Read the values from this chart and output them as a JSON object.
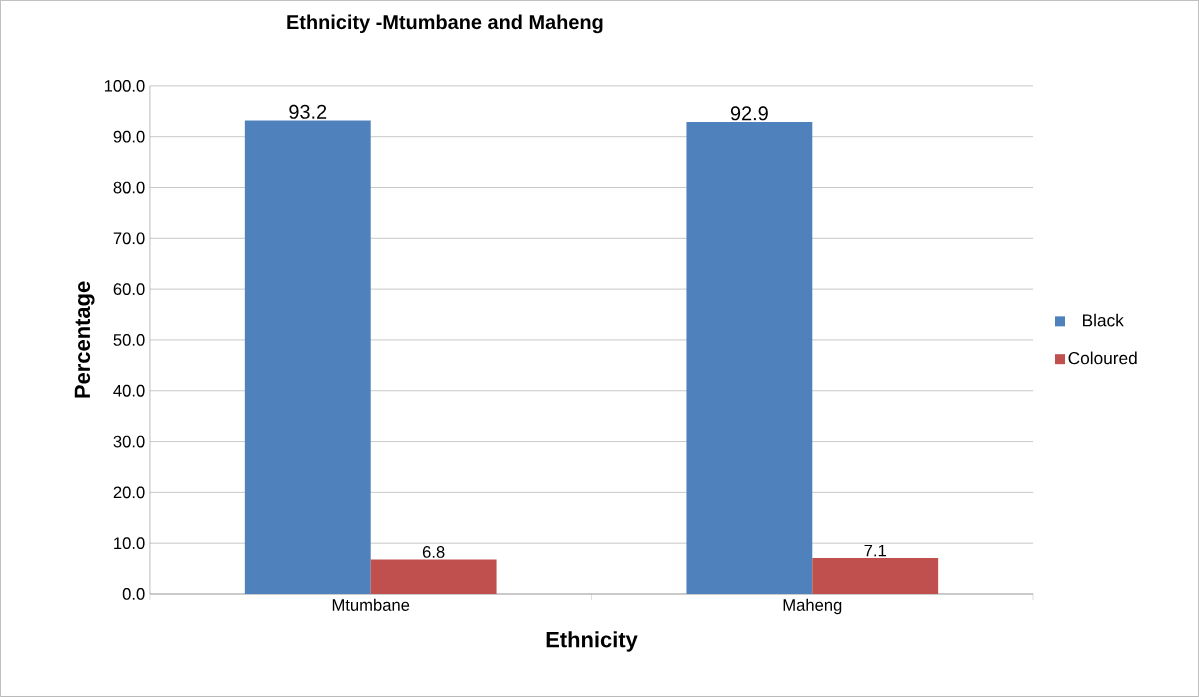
{
  "chart_data": {
    "type": "bar",
    "title": "Ethnicity -Mtumbane and Maheng",
    "xlabel": "Ethnicity",
    "ylabel": "Percentage",
    "categories": [
      "Mtumbane",
      "Maheng"
    ],
    "series": [
      {
        "name": "Black",
        "color": "#4f81bd",
        "values": [
          93.2,
          92.9
        ],
        "value_labels": [
          "93.2",
          "92.9"
        ]
      },
      {
        "name": "Coloured",
        "color": "#c0504d",
        "values": [
          6.8,
          7.1
        ],
        "value_labels": [
          "6.8",
          "7.1"
        ]
      }
    ],
    "ylim": [
      0,
      100
    ],
    "yticks": [
      {
        "value": 0,
        "label": "0.0"
      },
      {
        "value": 10,
        "label": "10.0"
      },
      {
        "value": 20,
        "label": "20.0"
      },
      {
        "value": 30,
        "label": "30.0"
      },
      {
        "value": 40,
        "label": "40.0"
      },
      {
        "value": 50,
        "label": "50.0"
      },
      {
        "value": 60,
        "label": "60.0"
      },
      {
        "value": 70,
        "label": "70.0"
      },
      {
        "value": 80,
        "label": "80.0"
      },
      {
        "value": 90,
        "label": "90.0"
      },
      {
        "value": 100,
        "label": "100.0"
      }
    ],
    "grid": "y",
    "legend": "right"
  }
}
